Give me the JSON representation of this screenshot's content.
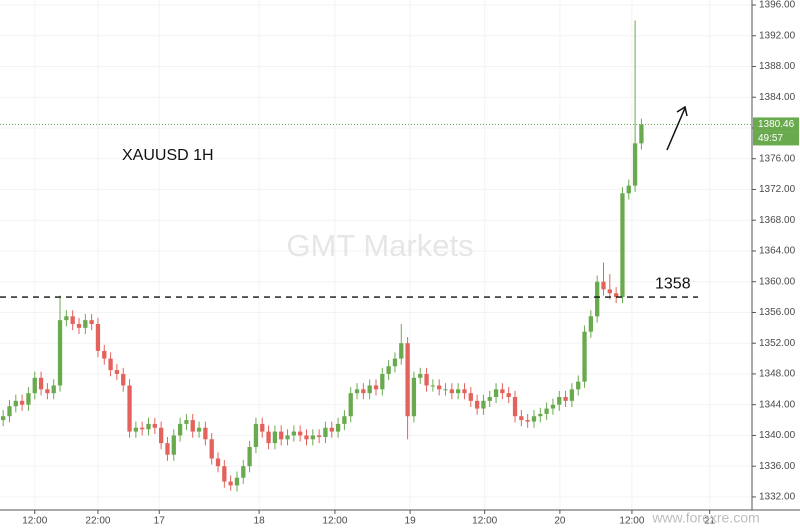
{
  "chart_data": {
    "type": "candlestick",
    "title": "XAUUSD 1H",
    "watermark": "GMT Markets",
    "source_watermark": "www.forexre.com",
    "annotation": {
      "text": "1358",
      "level": 1358
    },
    "countdown": "49:57",
    "up_color": "#6aaa4f",
    "down_color": "#e3625c",
    "grid": true,
    "xlim": [
      -0.5,
      118.5
    ],
    "xticks": [
      {
        "value": 5,
        "label": "12:00"
      },
      {
        "value": 15,
        "label": "22:00"
      },
      {
        "value": 24.7,
        "label": "17"
      },
      {
        "value": 40.5,
        "label": "18"
      },
      {
        "value": 52.5,
        "label": "12:00"
      },
      {
        "value": 64.4,
        "label": "19"
      },
      {
        "value": 76.2,
        "label": "12:00"
      },
      {
        "value": 88.1,
        "label": "20"
      },
      {
        "value": 99.5,
        "label": "12:00"
      },
      {
        "value": 111.8,
        "label": "21"
      }
    ],
    "ylim": [
      1330.3,
      1396.65
    ],
    "yticks": [
      {
        "value": 1332,
        "label": "1332.00"
      },
      {
        "value": 1336,
        "label": "1336.00"
      },
      {
        "value": 1340,
        "label": "1340.00"
      },
      {
        "value": 1344,
        "label": "1344.00"
      },
      {
        "value": 1348,
        "label": "1348.00"
      },
      {
        "value": 1352,
        "label": "1352.00"
      },
      {
        "value": 1356,
        "label": "1356.00"
      },
      {
        "value": 1360,
        "label": "1360.00"
      },
      {
        "value": 1364,
        "label": "1364.00"
      },
      {
        "value": 1368,
        "label": "1368.00"
      },
      {
        "value": 1372,
        "label": "1372.00"
      },
      {
        "value": 1376,
        "label": "1376.00"
      },
      {
        "value": 1380,
        "label": "1380.00"
      },
      {
        "value": 1384,
        "label": "1384.00"
      },
      {
        "value": 1388,
        "label": "1388.00"
      },
      {
        "value": 1392,
        "label": "1392.00"
      },
      {
        "value": 1396,
        "label": "1396.00"
      }
    ],
    "open": [
      1342.0,
      1342.5,
      1343.8,
      1344.5,
      1344.0,
      1345.5,
      1347.5,
      1346.0,
      1345.5,
      1346.5,
      1355.0,
      1355.5,
      1354.5,
      1354.0,
      1355.0,
      1354.5,
      1351.0,
      1350.0,
      1348.5,
      1348.0,
      1346.5,
      1340.5,
      1341.0,
      1340.8,
      1341.5,
      1341.0,
      1339.0,
      1337.5,
      1340.0,
      1341.5,
      1342.0,
      1340.5,
      1341.0,
      1339.5,
      1337.0,
      1336.0,
      1334.0,
      1333.5,
      1334.5,
      1336.0,
      1338.5,
      1341.5,
      1340.5,
      1339.0,
      1340.5,
      1339.5,
      1340.0,
      1340.5,
      1340.0,
      1339.5,
      1340.0,
      1339.8,
      1341.0,
      1340.5,
      1341.5,
      1342.5,
      1345.5,
      1346.0,
      1345.5,
      1346.5,
      1346.0,
      1348.0,
      1349.0,
      1350.0,
      1352.0,
      1342.5,
      1347.5,
      1348.0,
      1346.5,
      1346.5,
      1346.0,
      1346.0,
      1345.5,
      1346.0,
      1345.5,
      1344.5,
      1343.5,
      1344.5,
      1345.0,
      1346.0,
      1345.5,
      1345.0,
      1342.5,
      1342.0,
      1341.8,
      1342.5,
      1342.8,
      1343.5,
      1344.0,
      1345.0,
      1344.5,
      1346.0,
      1347.0,
      1353.5,
      1355.5,
      1360.0,
      1359.0,
      1358.5,
      1358.0,
      1371.5,
      1372.5,
      1378.0
    ],
    "high": [
      1343.3,
      1344.6,
      1345.3,
      1345.3,
      1346.3,
      1348.3,
      1348.3,
      1346.8,
      1347.3,
      1358.2,
      1356.3,
      1356.3,
      1355.3,
      1355.8,
      1355.8,
      1355.3,
      1351.8,
      1350.8,
      1349.3,
      1348.8,
      1347.3,
      1341.8,
      1341.8,
      1342.3,
      1342.3,
      1341.8,
      1339.8,
      1340.8,
      1342.3,
      1342.8,
      1342.8,
      1341.8,
      1341.8,
      1340.3,
      1337.8,
      1336.8,
      1334.8,
      1335.3,
      1336.8,
      1339.3,
      1342.3,
      1342.3,
      1341.3,
      1341.3,
      1341.3,
      1340.8,
      1341.3,
      1341.3,
      1340.8,
      1340.8,
      1340.8,
      1341.8,
      1341.8,
      1342.3,
      1343.3,
      1346.3,
      1346.8,
      1346.8,
      1347.3,
      1347.3,
      1348.8,
      1349.8,
      1350.8,
      1354.5,
      1352.8,
      1348.3,
      1348.8,
      1348.8,
      1347.3,
      1347.3,
      1346.8,
      1346.8,
      1346.8,
      1346.8,
      1346.3,
      1345.3,
      1345.3,
      1345.8,
      1346.8,
      1346.8,
      1346.3,
      1345.8,
      1343.3,
      1342.8,
      1343.3,
      1343.6,
      1344.3,
      1344.8,
      1345.8,
      1345.8,
      1346.8,
      1347.8,
      1354.3,
      1356.3,
      1360.8,
      1362.5,
      1361.0,
      1359.3,
      1372.3,
      1373.3,
      1394.0,
      1381.2
    ],
    "low": [
      1341.2,
      1341.7,
      1343.0,
      1343.2,
      1343.2,
      1344.7,
      1345.2,
      1344.7,
      1344.7,
      1345.7,
      1354.2,
      1353.7,
      1353.2,
      1353.2,
      1353.7,
      1350.2,
      1349.2,
      1347.7,
      1347.2,
      1345.7,
      1339.7,
      1339.7,
      1340.0,
      1340.0,
      1340.2,
      1338.2,
      1336.7,
      1336.7,
      1339.2,
      1340.7,
      1339.7,
      1339.7,
      1338.7,
      1336.2,
      1335.2,
      1333.2,
      1332.8,
      1332.7,
      1333.7,
      1335.2,
      1337.7,
      1339.7,
      1338.2,
      1338.2,
      1338.7,
      1338.7,
      1339.2,
      1339.2,
      1338.7,
      1338.7,
      1339.0,
      1339.0,
      1339.7,
      1339.7,
      1340.7,
      1341.7,
      1344.7,
      1344.7,
      1344.7,
      1345.2,
      1345.2,
      1347.2,
      1348.2,
      1349.2,
      1339.5,
      1341.7,
      1346.7,
      1345.7,
      1345.7,
      1345.2,
      1345.2,
      1344.7,
      1344.7,
      1344.7,
      1343.7,
      1342.7,
      1342.7,
      1343.7,
      1344.2,
      1344.7,
      1344.2,
      1341.7,
      1341.2,
      1341.0,
      1341.0,
      1341.7,
      1342.0,
      1342.7,
      1343.2,
      1343.7,
      1343.7,
      1345.2,
      1346.2,
      1352.7,
      1354.7,
      1358.2,
      1357.7,
      1357.2,
      1357.2,
      1370.7,
      1371.7,
      1377.2
    ],
    "close": [
      1342.5,
      1343.8,
      1344.5,
      1344.0,
      1345.5,
      1347.5,
      1346.0,
      1345.5,
      1346.5,
      1355.0,
      1355.5,
      1354.5,
      1354.0,
      1355.0,
      1354.5,
      1351.0,
      1350.0,
      1348.5,
      1348.0,
      1346.5,
      1340.5,
      1341.0,
      1340.8,
      1341.5,
      1341.0,
      1339.0,
      1337.5,
      1340.0,
      1341.5,
      1342.0,
      1340.5,
      1341.0,
      1339.5,
      1337.0,
      1336.0,
      1334.0,
      1333.5,
      1334.5,
      1336.0,
      1338.5,
      1341.5,
      1340.5,
      1339.0,
      1340.5,
      1339.5,
      1340.0,
      1340.5,
      1340.0,
      1339.5,
      1340.0,
      1339.8,
      1341.0,
      1340.5,
      1341.5,
      1342.5,
      1345.5,
      1346.0,
      1345.5,
      1346.5,
      1346.0,
      1348.0,
      1349.0,
      1350.0,
      1352.0,
      1342.5,
      1347.5,
      1348.0,
      1346.5,
      1346.5,
      1346.0,
      1346.0,
      1345.5,
      1346.0,
      1345.5,
      1344.5,
      1343.5,
      1344.5,
      1345.0,
      1346.0,
      1345.5,
      1345.0,
      1342.5,
      1342.0,
      1341.8,
      1342.5,
      1342.8,
      1343.5,
      1344.0,
      1345.0,
      1344.5,
      1346.0,
      1347.0,
      1353.5,
      1355.5,
      1360.0,
      1359.0,
      1358.5,
      1358.0,
      1371.5,
      1372.5,
      1378.0,
      1380.46
    ]
  }
}
